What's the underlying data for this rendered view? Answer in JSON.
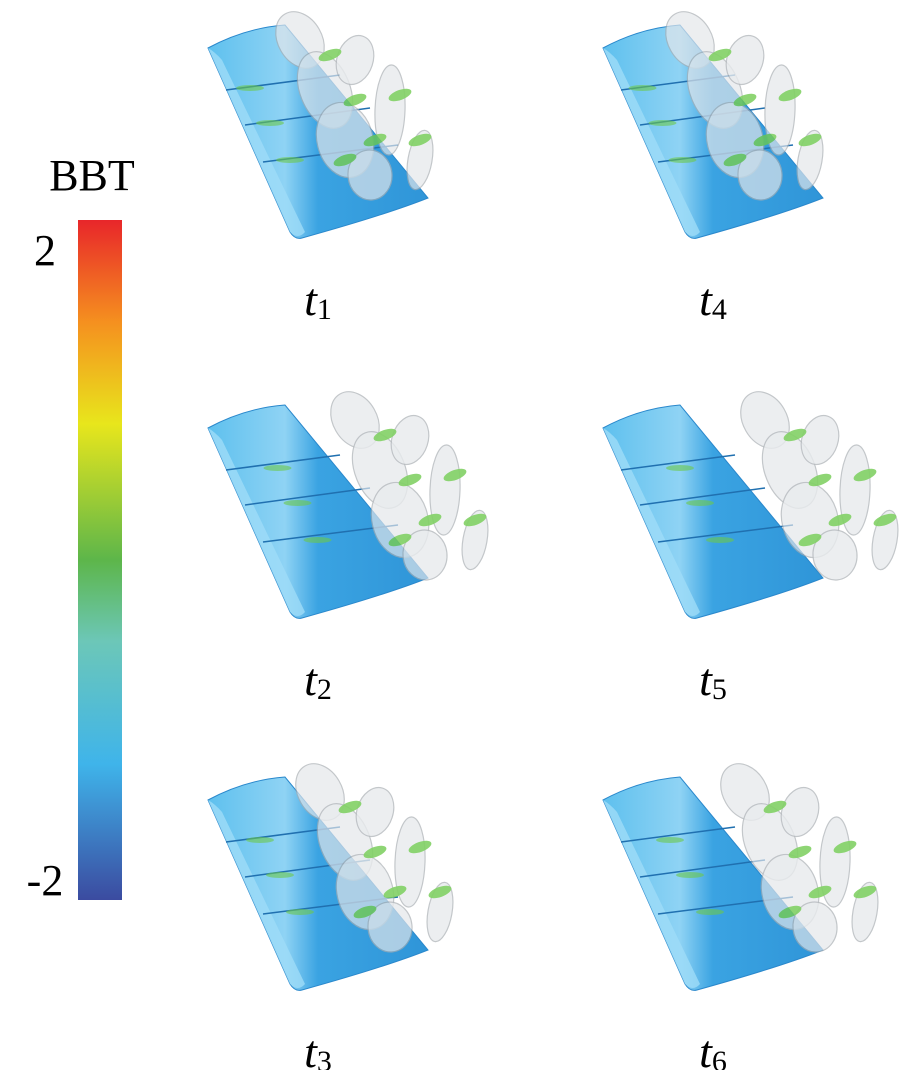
{
  "colorbar": {
    "title": "BBT",
    "min": -2,
    "max": 2,
    "ticks": [
      2,
      -2
    ]
  },
  "panels": [
    {
      "var": "t",
      "index": "1"
    },
    {
      "var": "t",
      "index": "2"
    },
    {
      "var": "t",
      "index": "3"
    },
    {
      "var": "t",
      "index": "4"
    },
    {
      "var": "t",
      "index": "5"
    },
    {
      "var": "t",
      "index": "6"
    }
  ]
}
